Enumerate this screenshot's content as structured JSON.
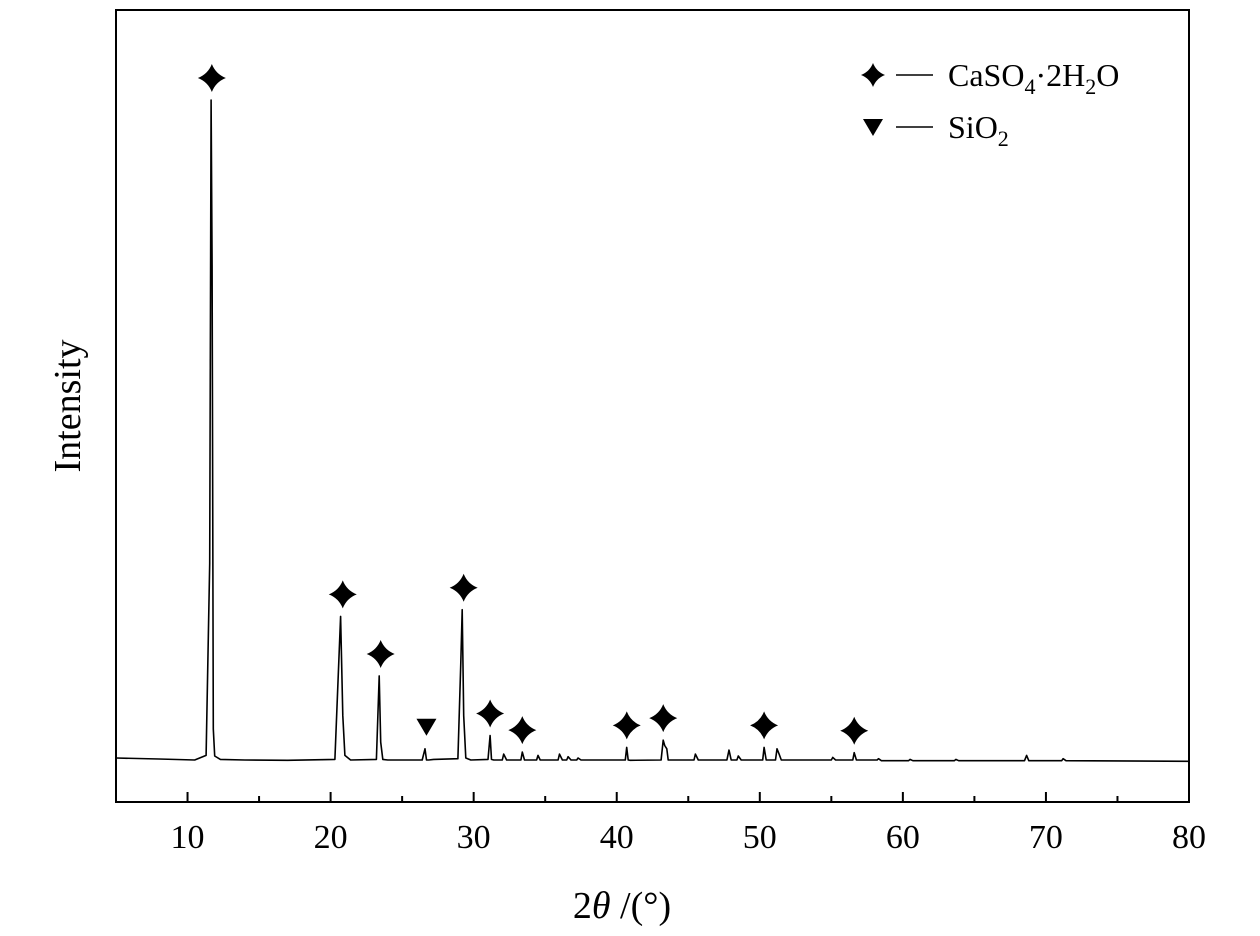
{
  "chart_data": {
    "type": "line",
    "xlabel": "2θ /(°)",
    "ylabel": "Intensity",
    "xlim": [
      5,
      80
    ],
    "ylim": [
      0,
      100
    ],
    "x_ticks": [
      10,
      20,
      30,
      40,
      50,
      60,
      70,
      80
    ],
    "x_tick_labels": [
      "10",
      "20",
      "30",
      "40",
      "50",
      "60",
      "70",
      "80"
    ],
    "series": [
      {
        "color": "#000000",
        "x": [
          5.0,
          8.0,
          10.5,
          11.3,
          11.55,
          11.65,
          11.72,
          11.8,
          11.9,
          12.3,
          14.0,
          17.0,
          20.3,
          20.7,
          20.85,
          21.0,
          21.4,
          23.2,
          23.4,
          23.5,
          23.65,
          24.0,
          26.4,
          26.6,
          26.7,
          26.85,
          27.2,
          28.9,
          29.1,
          29.2,
          29.3,
          29.45,
          29.8,
          31.0,
          31.15,
          31.25,
          31.4,
          32.0,
          32.1,
          32.3,
          33.3,
          33.4,
          33.55,
          34.4,
          34.5,
          34.65,
          35.9,
          36.0,
          36.2,
          36.5,
          36.6,
          36.8,
          37.2,
          37.3,
          37.5,
          40.6,
          40.7,
          40.8,
          40.95,
          43.1,
          43.25,
          43.35,
          43.5,
          43.6,
          43.8,
          45.4,
          45.5,
          45.7,
          47.7,
          47.85,
          48.0,
          48.4,
          48.5,
          48.7,
          50.2,
          50.3,
          50.45,
          51.1,
          51.2,
          51.35,
          51.5,
          55.0,
          55.1,
          55.3,
          56.5,
          56.6,
          56.75,
          58.2,
          58.3,
          58.5,
          60.4,
          60.5,
          60.7,
          63.6,
          63.7,
          63.9,
          68.5,
          68.65,
          68.8,
          71.1,
          71.2,
          71.4,
          80.0
        ],
        "y": [
          0.6,
          0.45,
          0.3,
          1.0,
          30.0,
          100.0,
          75.0,
          5.0,
          0.9,
          0.4,
          0.3,
          0.25,
          0.4,
          22.0,
          7.0,
          1.0,
          0.3,
          0.4,
          13.0,
          3.0,
          0.4,
          0.3,
          0.3,
          2.0,
          0.3,
          0.3,
          0.4,
          0.5,
          15.0,
          23.0,
          7.0,
          0.6,
          0.3,
          0.4,
          4.0,
          0.4,
          0.3,
          0.3,
          1.2,
          0.3,
          0.3,
          1.5,
          0.3,
          0.3,
          1.0,
          0.3,
          0.3,
          1.2,
          0.3,
          0.3,
          0.8,
          0.3,
          0.3,
          0.6,
          0.3,
          0.3,
          2.2,
          0.3,
          0.25,
          0.3,
          3.3,
          2.5,
          2.0,
          0.3,
          0.3,
          0.3,
          1.2,
          0.3,
          0.3,
          1.8,
          0.3,
          0.3,
          0.9,
          0.3,
          0.3,
          2.2,
          0.3,
          0.3,
          2.0,
          1.2,
          0.3,
          0.3,
          0.7,
          0.3,
          0.3,
          1.4,
          0.3,
          0.3,
          0.5,
          0.2,
          0.2,
          0.4,
          0.2,
          0.2,
          0.4,
          0.2,
          0.2,
          1.0,
          0.2,
          0.2,
          0.5,
          0.2,
          0.1
        ]
      }
    ],
    "legend": {
      "placement": "top-right",
      "entries": [
        {
          "marker": "star4",
          "text": "CaSO",
          "sub1": "4",
          "mid": "·2H",
          "sub2": "2",
          "tail": "O"
        },
        {
          "marker": "triangle-down",
          "text": "SiO",
          "sub1": "2",
          "mid": "",
          "sub2": "",
          "tail": ""
        }
      ]
    },
    "peak_markers": [
      {
        "x": 11.7,
        "y": 100.0,
        "marker": "star4"
      },
      {
        "x": 20.85,
        "y": 22.0,
        "marker": "star4"
      },
      {
        "x": 23.5,
        "y": 13.0,
        "marker": "star4"
      },
      {
        "x": 26.7,
        "y": 2.0,
        "marker": "triangle-down"
      },
      {
        "x": 29.3,
        "y": 23.0,
        "marker": "star4"
      },
      {
        "x": 31.15,
        "y": 4.0,
        "marker": "star4"
      },
      {
        "x": 33.4,
        "y": 1.5,
        "marker": "star4"
      },
      {
        "x": 40.7,
        "y": 2.2,
        "marker": "star4"
      },
      {
        "x": 43.25,
        "y": 3.3,
        "marker": "star4"
      },
      {
        "x": 50.3,
        "y": 2.2,
        "marker": "star4"
      },
      {
        "x": 56.6,
        "y": 1.4,
        "marker": "star4"
      }
    ],
    "grid": false
  }
}
